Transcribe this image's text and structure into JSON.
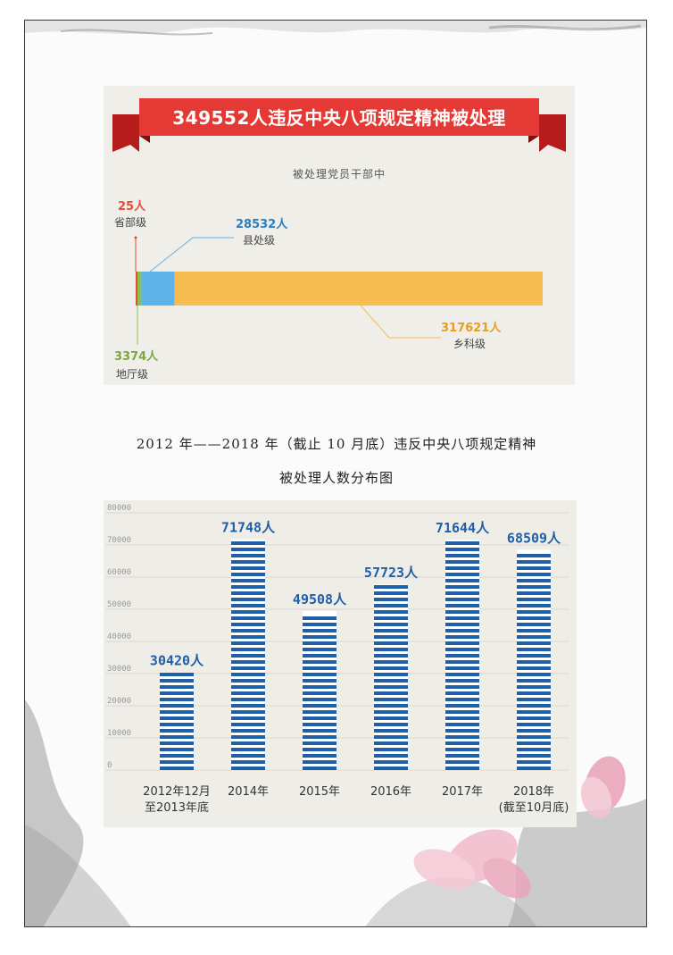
{
  "infographic": {
    "banner_title": "349552人违反中央八项规定精神被处理",
    "subtitle": "被处理党员干部中",
    "segments": [
      {
        "value_label": "25人",
        "level": "省部级",
        "value": 25,
        "color": "#e74c3c"
      },
      {
        "value_label": "3374人",
        "level": "地厅级",
        "value": 3374,
        "color": "#8cbf4f"
      },
      {
        "value_label": "28532人",
        "level": "县处级",
        "value": 28532,
        "color": "#5fb3ea"
      },
      {
        "value_label": "317621人",
        "level": "乡科级",
        "value": 317621,
        "color": "#f6bc4f"
      }
    ],
    "colors": {
      "banner": "#e53935",
      "banner_dark": "#b71c1c"
    }
  },
  "caption": {
    "line1": "2012 年——2018 年（截止 10 月底）违反中央八项规定精神",
    "line2": "被处理人数分布图"
  },
  "chart_data": {
    "type": "bar",
    "categories": [
      [
        "2012年12月",
        "至2013年底"
      ],
      [
        "2014年"
      ],
      [
        "2015年"
      ],
      [
        "2016年"
      ],
      [
        "2017年"
      ],
      [
        "2018年",
        "(截至10月底)"
      ]
    ],
    "values": [
      30420,
      71748,
      49508,
      57723,
      71644,
      68509
    ],
    "value_labels": [
      "30420人",
      "71748人",
      "49508人",
      "57723人",
      "71644人",
      "68509人"
    ],
    "yticks": [
      0,
      10000,
      20000,
      30000,
      40000,
      50000,
      60000,
      70000,
      80000
    ],
    "ylim": [
      0,
      80000
    ],
    "grid": true,
    "bar_color": "#1f5fa8"
  }
}
